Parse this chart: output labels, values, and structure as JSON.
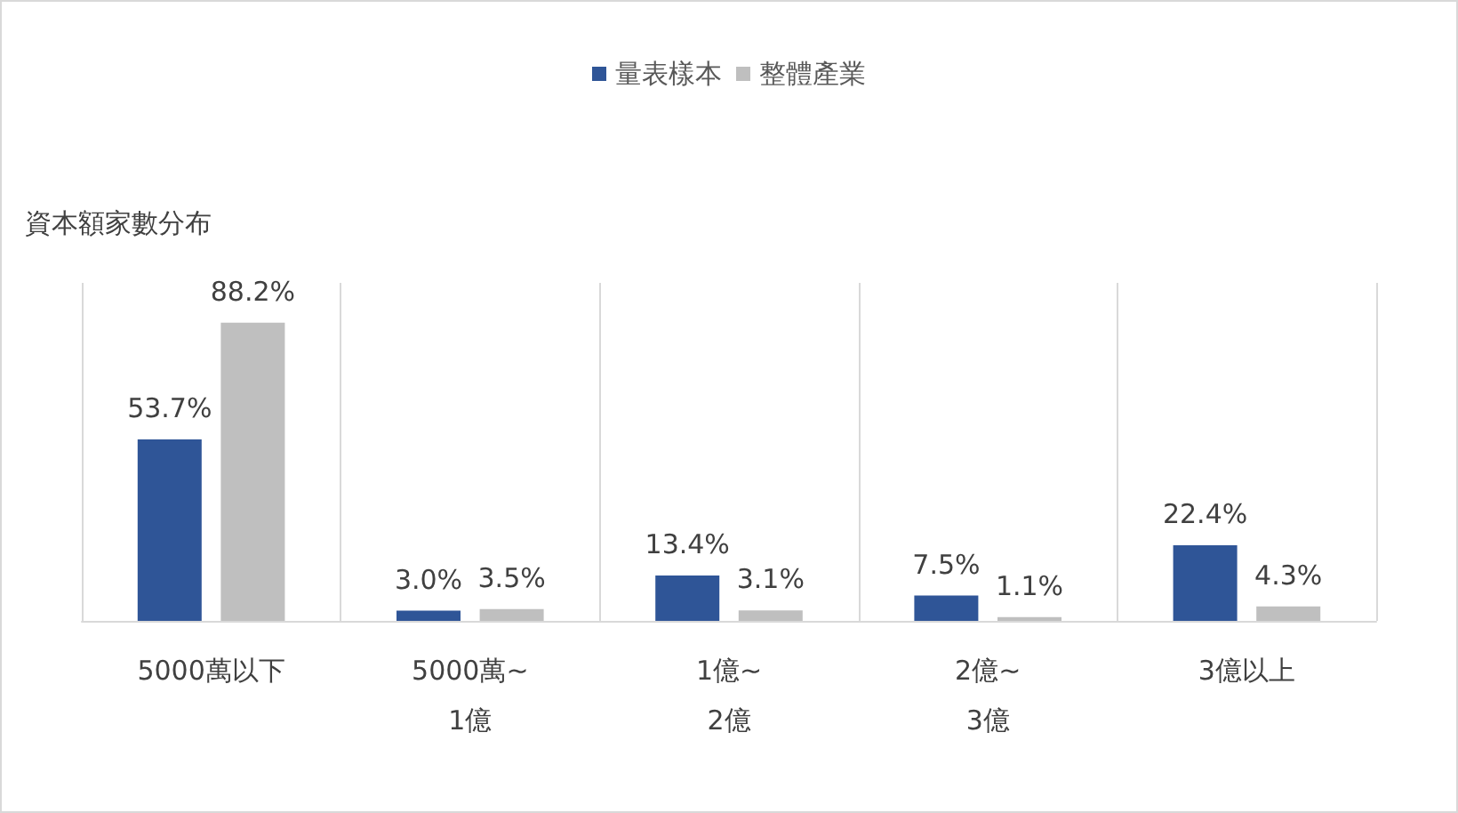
{
  "chart_data": {
    "type": "bar",
    "title": "資本額家數分布",
    "categories": [
      "5000萬以下",
      "5000萬~\n1億",
      "1億~\n2億",
      "2億~\n3億",
      "3億以上"
    ],
    "series": [
      {
        "name": "量表樣本",
        "color": "#2f5597",
        "values": [
          53.7,
          3.0,
          13.4,
          7.5,
          22.4
        ],
        "value_labels": [
          "53.7%",
          "3.0%",
          "13.4%",
          "7.5%",
          "22.4%"
        ]
      },
      {
        "name": "整體產業",
        "color": "#bfbfbf",
        "values": [
          88.2,
          3.5,
          3.1,
          1.1,
          4.3
        ],
        "value_labels": [
          "88.2%",
          "3.5%",
          "3.1%",
          "1.1%",
          "4.3%"
        ]
      }
    ],
    "grid": "x",
    "legend": "top",
    "tick_labels": "x"
  }
}
